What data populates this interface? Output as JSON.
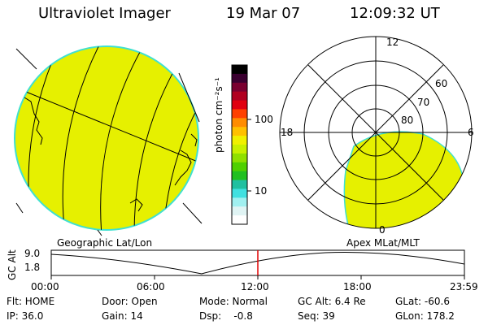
{
  "header": {
    "instrument": "Ultraviolet Imager",
    "date": "19 Mar 07",
    "time": "12:09:32 UT"
  },
  "colorbar": {
    "unit_label": "photon cm⁻²s⁻¹",
    "ticks": [
      "100",
      "10"
    ],
    "colors": [
      "#000000",
      "#3a0030",
      "#7a0030",
      "#b00020",
      "#e00010",
      "#ff4000",
      "#ff8c00",
      "#ffc000",
      "#f0f000",
      "#c8f000",
      "#90e000",
      "#50d000",
      "#20c020",
      "#20c0a0",
      "#40e0e0",
      "#a0f0f0",
      "#e0f4f4",
      "#ffffff"
    ]
  },
  "left_panel": {
    "caption": "Geographic Lat/Lon",
    "fill_color": "#e6f000",
    "edge_color": "#40e0d0"
  },
  "right_panel": {
    "caption": "Apex MLat/MLT",
    "mlt_labels": {
      "top": "12",
      "left": "18",
      "right": "6",
      "bottom": "0"
    },
    "lat_labels": [
      "60",
      "70",
      "80"
    ],
    "fill_color": "#e6f000"
  },
  "timeline": {
    "axis_label": "GC Alt",
    "y_ticks": [
      "9.0",
      "1.8"
    ],
    "x_ticks": [
      "00:00",
      "06:00",
      "12:00",
      "18:00",
      "23:59"
    ],
    "current_marker_color": "#e00000"
  },
  "status": {
    "flt": "Flt: HOME",
    "ip": "IP: 36.0",
    "door": "Door: Open",
    "gain": "Gain: 14",
    "mode": "Mode: Normal",
    "dsp": "Dsp:    -0.8",
    "gc_alt": "GC Alt: 6.4 Re",
    "seq": "Seq: 39",
    "glat": "GLat: -60.6",
    "glon": "GLon: 178.2"
  }
}
